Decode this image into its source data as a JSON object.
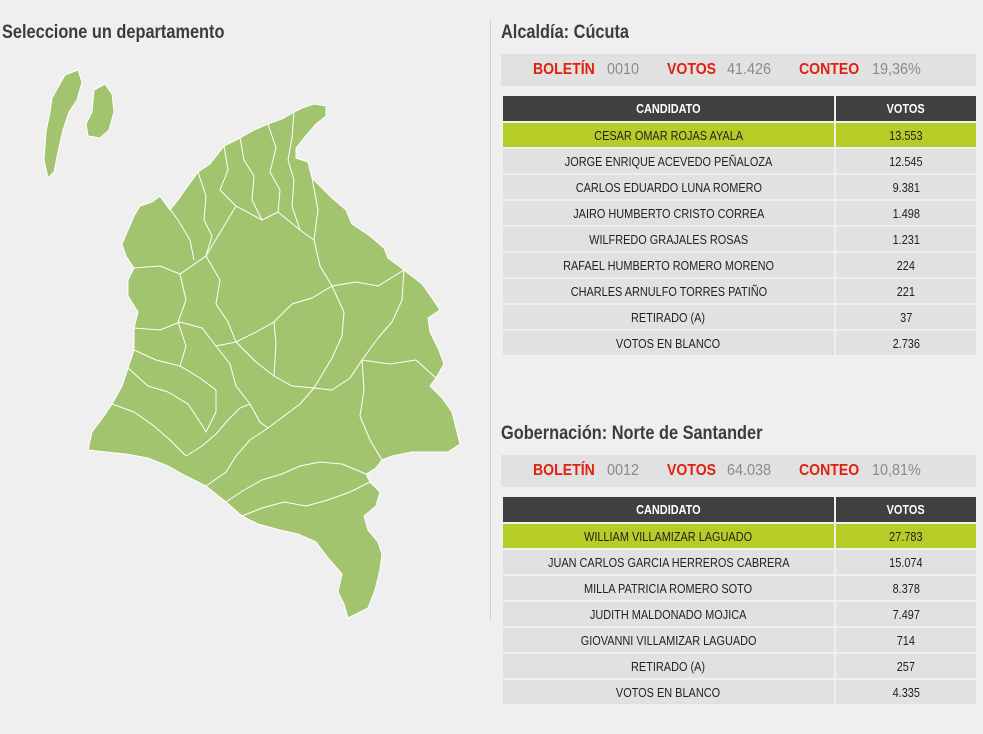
{
  "map_panel": {
    "title": "Seleccione un departamento",
    "colors": {
      "land": "#a3c46e",
      "border": "#ffffff"
    }
  },
  "alcaldia": {
    "title": "Alcaldía: Cúcuta",
    "boletin_label": "BOLETÍN",
    "boletin": "0010",
    "votos_label": "VOTOS",
    "votos": "41.426",
    "conteo_label": "CONTEO",
    "conteo": "19,36%",
    "headers": {
      "candidate": "CANDIDATO",
      "votes": "VOTOS"
    },
    "rows": [
      {
        "name": "CESAR OMAR ROJAS AYALA",
        "votes": "13.553"
      },
      {
        "name": "JORGE ENRIQUE ACEVEDO PEÑALOZA",
        "votes": "12.545"
      },
      {
        "name": "CARLOS EDUARDO LUNA ROMERO",
        "votes": "9.381"
      },
      {
        "name": "JAIRO HUMBERTO CRISTO CORREA",
        "votes": "1.498"
      },
      {
        "name": "WILFREDO GRAJALES ROSAS",
        "votes": "1.231"
      },
      {
        "name": "RAFAEL HUMBERTO ROMERO MORENO",
        "votes": "224"
      },
      {
        "name": "CHARLES ARNULFO TORRES PATIÑO",
        "votes": "221"
      },
      {
        "name": "RETIRADO (A)",
        "votes": "37"
      },
      {
        "name": "VOTOS EN BLANCO",
        "votes": "2.736"
      }
    ]
  },
  "gobernacion": {
    "title": "Gobernación: Norte de Santander",
    "boletin_label": "BOLETÍN",
    "boletin": "0012",
    "votos_label": "VOTOS",
    "votos": "64.038",
    "conteo_label": "CONTEO",
    "conteo": "10,81%",
    "headers": {
      "candidate": "CANDIDATO",
      "votes": "VOTOS"
    },
    "rows": [
      {
        "name": "WILLIAM VILLAMIZAR LAGUADO",
        "votes": "27.783"
      },
      {
        "name": "JUAN CARLOS GARCIA HERREROS CABRERA",
        "votes": "15.074"
      },
      {
        "name": "MILLA PATRICIA ROMERO SOTO",
        "votes": "8.378"
      },
      {
        "name": "JUDITH MALDONADO MOJICA",
        "votes": "7.497"
      },
      {
        "name": "GIOVANNI VILLAMIZAR LAGUADO",
        "votes": "714"
      },
      {
        "name": "RETIRADO (A)",
        "votes": "257"
      },
      {
        "name": "VOTOS EN BLANCO",
        "votes": "4.335"
      }
    ]
  },
  "colors": {
    "header_bg": "#404040",
    "row_bg": "#e1e1e1",
    "winner_bg": "#b6cc27",
    "label_red": "#e02010",
    "value_gray": "#8a8a8a"
  }
}
